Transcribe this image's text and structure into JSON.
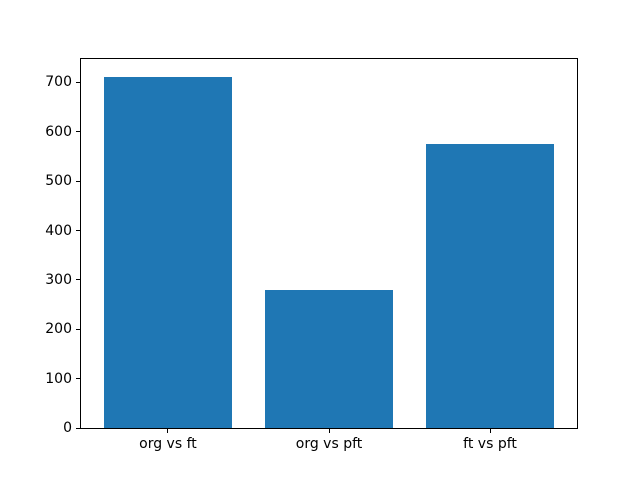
{
  "chart_data": {
    "type": "bar",
    "categories": [
      "org vs ft",
      "org vs pft",
      "ft vs pft"
    ],
    "values": [
      712,
      280,
      575
    ],
    "title": "",
    "xlabel": "",
    "ylabel": "",
    "yticks": [
      0,
      100,
      200,
      300,
      400,
      500,
      600,
      700
    ],
    "ylim": [
      0,
      747.6
    ],
    "bar_color": "#1f77b4",
    "background_color": "#ffffff",
    "spine_color": "#000000",
    "grid": false,
    "legend": null
  }
}
